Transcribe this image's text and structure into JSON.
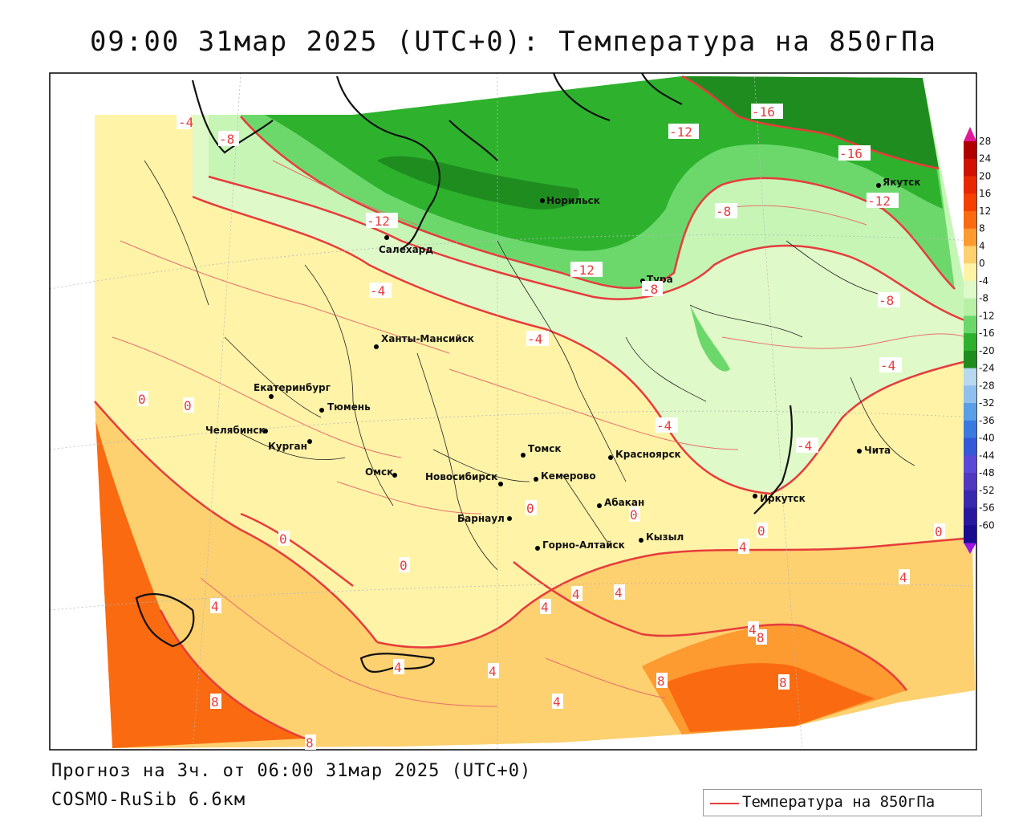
{
  "title": "09:00 31мар 2025 (UTC+0): Температура на 850гПа",
  "footer": {
    "forecast": "Прогноз на 3ч. от 06:00 31мар 2025 (UTC+0)",
    "model": "COSMO-RuSib 6.6км"
  },
  "legend": {
    "label": "Температура на 850гПа",
    "line_color": "#e63c3c"
  },
  "colorbar": {
    "ticks": [
      "28",
      "24",
      "20",
      "16",
      "12",
      "8",
      "4",
      "0",
      "-4",
      "-8",
      "-12",
      "-16",
      "-20",
      "-24",
      "-28",
      "-32",
      "-36",
      "-40",
      "-44",
      "-48",
      "-52",
      "-56",
      "-60"
    ],
    "colors": [
      "#b00000",
      "#d01000",
      "#e82800",
      "#f44000",
      "#fa6a10",
      "#fd9a30",
      "#fdd070",
      "#fff3a8",
      "#dff9c8",
      "#b8f0a8",
      "#6cd86c",
      "#2eb22e",
      "#1e8c1e",
      "#b8d8f0",
      "#90c0ee",
      "#5a9ee8",
      "#3a7ae0",
      "#3458d8",
      "#5a48d8",
      "#5038c0",
      "#3828b0",
      "#2818a0",
      "#180c90"
    ],
    "top_arrow_color": "#e0189a",
    "bottom_arrow_color": "#9a18e0"
  },
  "cities": [
    {
      "name": "Норильск"
    },
    {
      "name": "Якутск"
    },
    {
      "name": "Салехард"
    },
    {
      "name": "Тура"
    },
    {
      "name": "Ханты-Мансийск"
    },
    {
      "name": "Екатеринбург"
    },
    {
      "name": "Тюмень"
    },
    {
      "name": "Челябинск"
    },
    {
      "name": "Курган"
    },
    {
      "name": "Омск"
    },
    {
      "name": "Томск"
    },
    {
      "name": "Красноярск"
    },
    {
      "name": "Новосибирск"
    },
    {
      "name": "Кемерово"
    },
    {
      "name": "Чита"
    },
    {
      "name": "Иркутск"
    },
    {
      "name": "Абакан"
    },
    {
      "name": "Барнаул"
    },
    {
      "name": "Кызыл"
    },
    {
      "name": "Горно-Алтайск"
    }
  ],
  "isotherm_labels": [
    "-4",
    "-8",
    "-16",
    "-12",
    "-16",
    "-12",
    "-8",
    "-12",
    "-12",
    "-8",
    "-8",
    "-4",
    "-4",
    "-4",
    "-4",
    "-4",
    "0",
    "0",
    "0",
    "0",
    "0",
    "0",
    "0",
    "0",
    "4",
    "4",
    "4",
    "4",
    "4",
    "4",
    "4",
    "4",
    "4",
    "4",
    "8",
    "8",
    "8",
    "8",
    "8"
  ]
}
